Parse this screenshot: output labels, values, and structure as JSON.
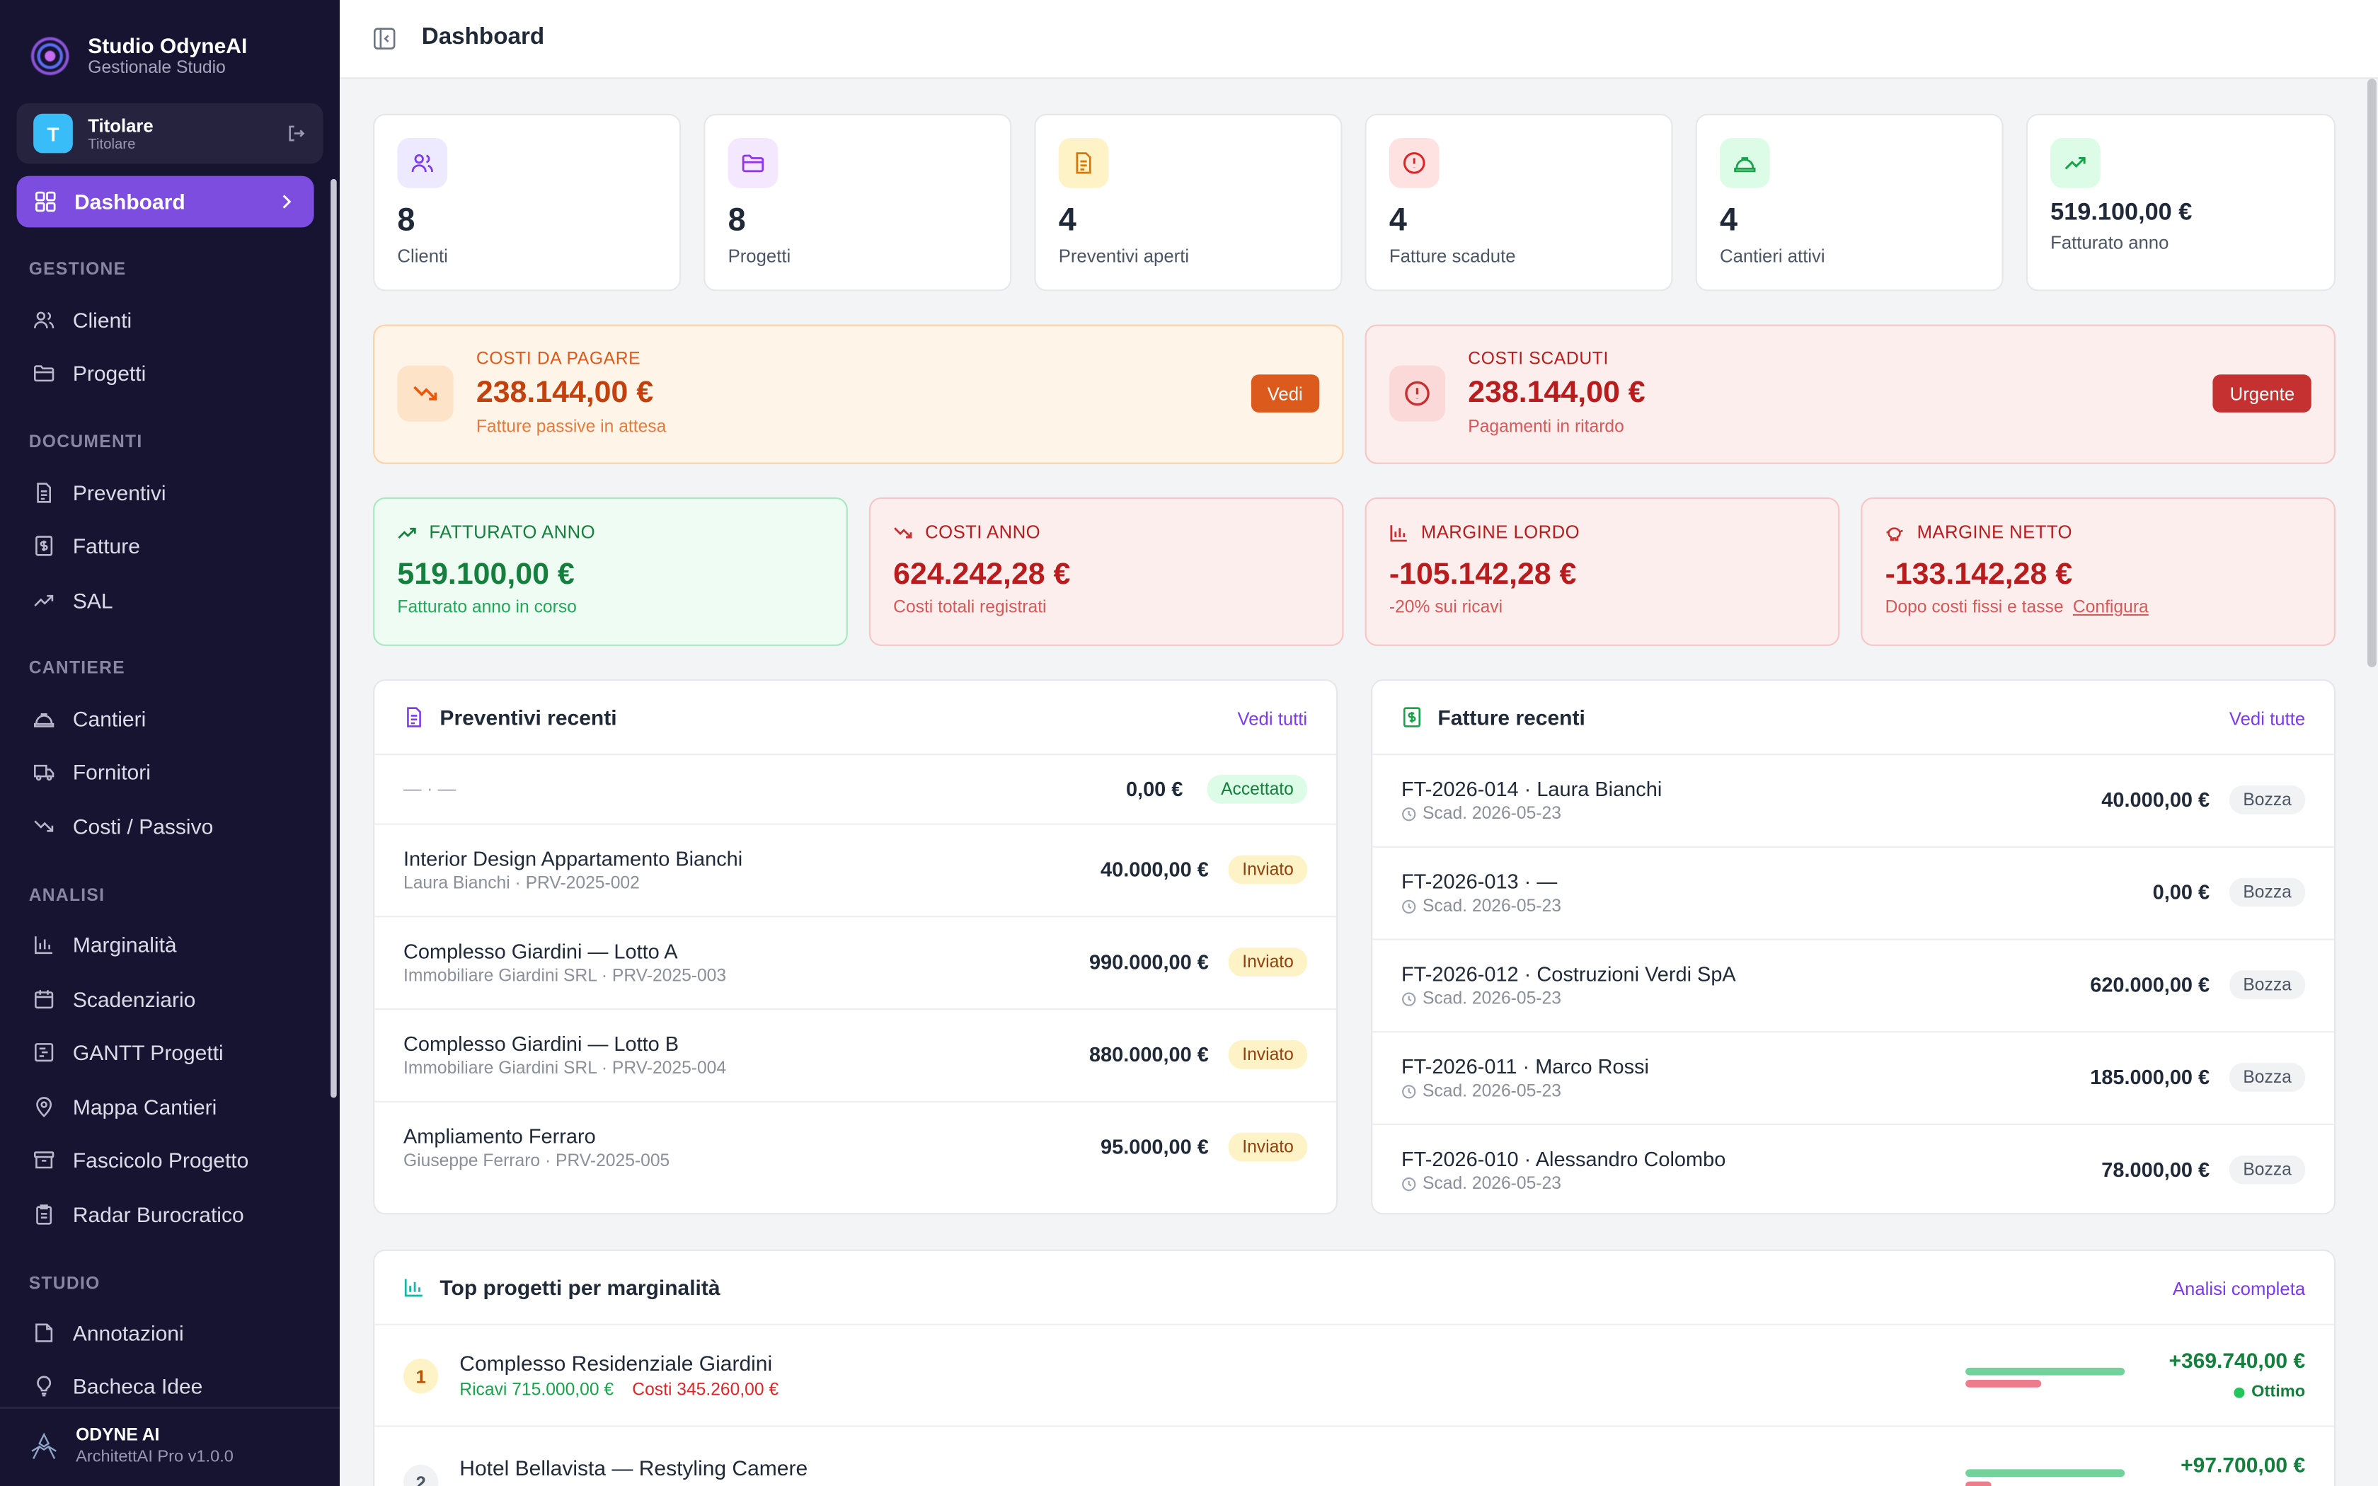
{
  "sidebar": {
    "brand_name": "Studio OdyneAI",
    "brand_sub": "Gestionale Studio",
    "user": {
      "initial": "T",
      "name": "Titolare",
      "role": "Titolare"
    },
    "active": {
      "label": "Dashboard"
    },
    "sections": {
      "gestione": "GESTIONE",
      "documenti": "DOCUMENTI",
      "cantiere": "CANTIERE",
      "analisi": "ANALISI",
      "studio": "STUDIO"
    },
    "items": {
      "clienti": "Clienti",
      "progetti": "Progetti",
      "preventivi": "Preventivi",
      "fatture": "Fatture",
      "sal": "SAL",
      "cantieri": "Cantieri",
      "fornitori": "Fornitori",
      "costi": "Costi / Passivo",
      "marginalita": "Marginalità",
      "scadenziario": "Scadenziario",
      "gantt": "GANTT Progetti",
      "mappa": "Mappa Cantieri",
      "fascicolo": "Fascicolo Progetto",
      "radar": "Radar Burocratico",
      "annotazioni": "Annotazioni",
      "bacheca": "Bacheca Idee"
    },
    "footer": {
      "name": "ODYNE AI",
      "version": "ArchitettAI Pro v1.0.0"
    }
  },
  "header": {
    "title": "Dashboard"
  },
  "stats": [
    {
      "value": "8",
      "label": "Clienti"
    },
    {
      "value": "8",
      "label": "Progetti"
    },
    {
      "value": "4",
      "label": "Preventivi aperti"
    },
    {
      "value": "4",
      "label": "Fatture scadute"
    },
    {
      "value": "4",
      "label": "Cantieri attivi"
    },
    {
      "value": "519.100,00 €",
      "label": "Fatturato anno"
    }
  ],
  "alerts": {
    "da_pagare": {
      "title": "COSTI DA PAGARE",
      "value": "238.144,00 €",
      "sub": "Fatture passive in attesa",
      "button": "Vedi"
    },
    "scaduti": {
      "title": "COSTI SCADUTI",
      "value": "238.144,00 €",
      "sub": "Pagamenti in ritardo",
      "button": "Urgente"
    }
  },
  "kpis": {
    "fatturato": {
      "title": "FATTURATO ANNO",
      "value": "519.100,00 €",
      "sub": "Fatturato anno in corso"
    },
    "costi": {
      "title": "COSTI ANNO",
      "value": "624.242,28 €",
      "sub": "Costi totali registrati"
    },
    "margine_lordo": {
      "title": "MARGINE LORDO",
      "value": "-105.142,28 €",
      "sub": "-20% sui ricavi"
    },
    "margine_netto": {
      "title": "MARGINE NETTO",
      "value": "-133.142,28 €",
      "sub": "Dopo costi fissi e tasse",
      "link": "Configura"
    }
  },
  "preventivi": {
    "title": "Preventivi recenti",
    "link": "Vedi tutti",
    "rows": [
      {
        "title": "— · —",
        "sub": "",
        "amount": "0,00 €",
        "status": "Accettato"
      },
      {
        "title": "Interior Design Appartamento Bianchi",
        "sub": "Laura Bianchi · PRV-2025-002",
        "amount": "40.000,00 €",
        "status": "Inviato"
      },
      {
        "title": "Complesso Giardini — Lotto A",
        "sub": "Immobiliare Giardini SRL · PRV-2025-003",
        "amount": "990.000,00 €",
        "status": "Inviato"
      },
      {
        "title": "Complesso Giardini — Lotto B",
        "sub": "Immobiliare Giardini SRL · PRV-2025-004",
        "amount": "880.000,00 €",
        "status": "Inviato"
      },
      {
        "title": "Ampliamento Ferraro",
        "sub": "Giuseppe Ferraro · PRV-2025-005",
        "amount": "95.000,00 €",
        "status": "Inviato"
      }
    ]
  },
  "fatture": {
    "title": "Fatture recenti",
    "link": "Vedi tutte",
    "rows": [
      {
        "title": "FT-2026-014 · Laura Bianchi",
        "sub": "Scad. 2026-05-23",
        "amount": "40.000,00 €",
        "status": "Bozza"
      },
      {
        "title": "FT-2026-013 · —",
        "sub": "Scad. 2026-05-23",
        "amount": "0,00 €",
        "status": "Bozza"
      },
      {
        "title": "FT-2026-012 · Costruzioni Verdi SpA",
        "sub": "Scad. 2026-05-23",
        "amount": "620.000,00 €",
        "status": "Bozza"
      },
      {
        "title": "FT-2026-011 · Marco Rossi",
        "sub": "Scad. 2026-05-23",
        "amount": "185.000,00 €",
        "status": "Bozza"
      },
      {
        "title": "FT-2026-010 · Alessandro Colombo",
        "sub": "Scad. 2026-05-23",
        "amount": "78.000,00 €",
        "status": "Bozza"
      }
    ]
  },
  "top": {
    "title": "Top progetti per marginalità",
    "link": "Analisi completa",
    "rows": [
      {
        "rank": "1",
        "name": "Complesso Residenziale Giardini",
        "ricavi": "Ricavi 715.000,00 €",
        "costi": "Costi 345.260,00 €",
        "margin": "+369.740,00 €",
        "tag": "Ottimo",
        "revenue_ratio": 1.0,
        "cost_ratio": 0.48
      },
      {
        "rank": "2",
        "name": "Hotel Bellavista — Restyling Camere",
        "ricavi": "",
        "costi": "",
        "margin": "+97.700,00 €",
        "tag": "",
        "revenue_ratio": 1.0,
        "cost_ratio": 0.16
      }
    ]
  },
  "colors": {
    "sidebar_bg": "#171431",
    "accent": "#7c4ddf",
    "orange": "#dc5a1c",
    "red": "#c53030",
    "green": "#15803d"
  }
}
